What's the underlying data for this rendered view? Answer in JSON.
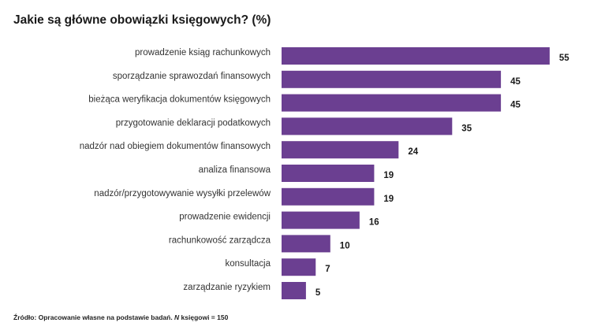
{
  "chart_data": {
    "type": "bar",
    "orientation": "horizontal",
    "title": "Jakie są główne obowiązki księgowych? (%)",
    "categories": [
      "prowadzenie ksiąg rachunkowych",
      "sporządzanie sprawozdań finansowych",
      "bieżąca weryfikacja dokumentów księgowych",
      "przygotowanie deklaracji podatkowych",
      "nadzór nad obiegiem dokumentów finansowych",
      "analiza finansowa",
      "nadzór/przygotowywanie wysyłki przelewów",
      "prowadzenie ewidencji",
      "rachunkowość zarządcza",
      "konsultacja",
      "zarządzanie ryzykiem"
    ],
    "values": [
      55,
      45,
      45,
      35,
      24,
      19,
      19,
      16,
      10,
      7,
      5
    ],
    "bar_color": "#6b3f91",
    "grid": false,
    "legend": "none"
  },
  "source": {
    "prefix": "Źródło: Opracowanie własne na podstawie badań. ",
    "n_symbol": "N",
    "suffix": " księgowi = 150"
  }
}
